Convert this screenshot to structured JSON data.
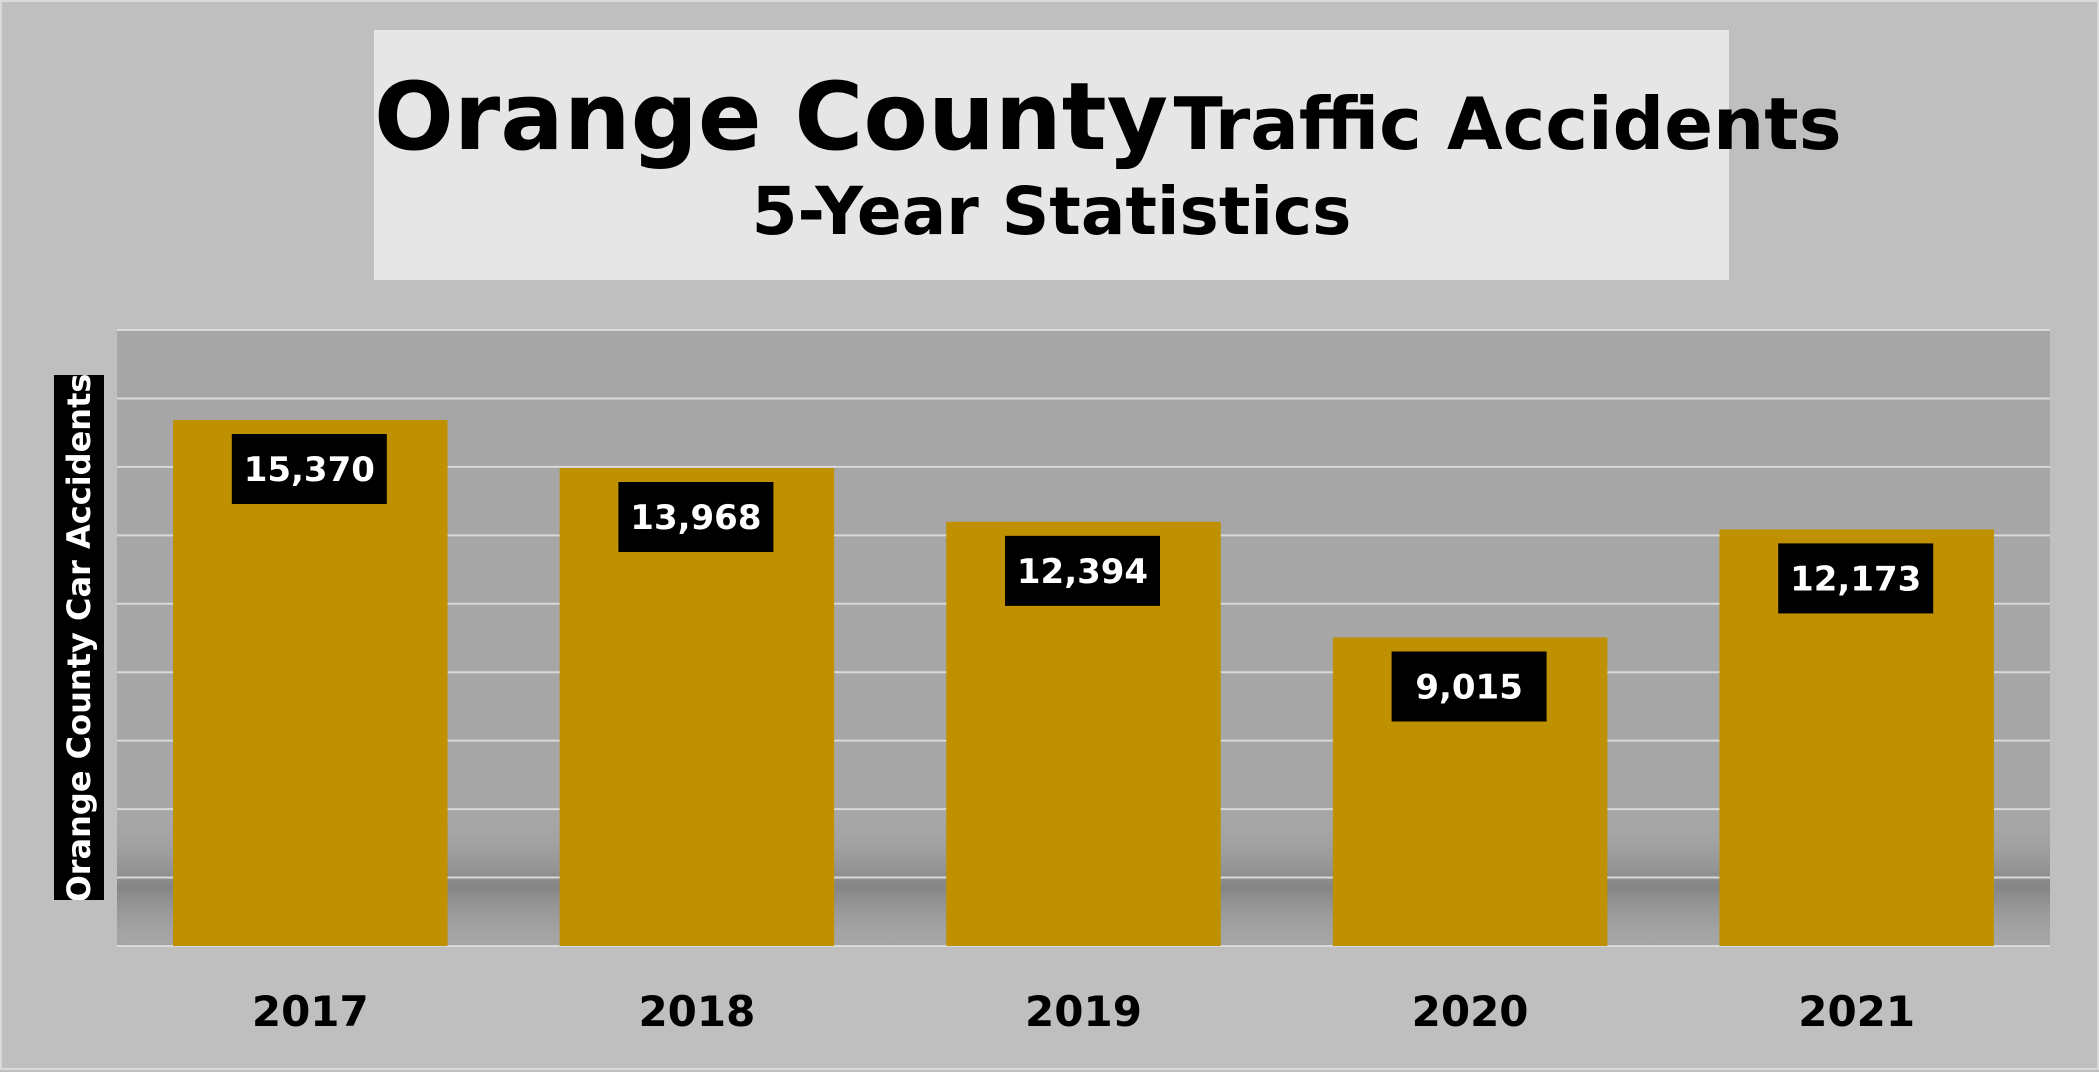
{
  "chart_data": {
    "type": "bar",
    "title_main": "Orange County",
    "title_rest": "Traffic Accidents",
    "subtitle": "5-Year Statistics",
    "xlabel": "",
    "ylabel": "Orange County Car Accidents",
    "categories": [
      "2017",
      "2018",
      "2019",
      "2020",
      "2021"
    ],
    "values": [
      15370,
      13968,
      12394,
      9015,
      12173
    ],
    "value_labels": [
      "15,370",
      "13,968",
      "12,394",
      "9,015",
      "12,173"
    ],
    "ylim": [
      0,
      18000
    ],
    "grid": true,
    "legend": "none",
    "colors": {
      "bar": "#bf9000",
      "plot_background": "#a6a6a6",
      "page_background": "#bfbfbf",
      "gridline": "#d9d9d9",
      "label_box": "#000000"
    }
  }
}
